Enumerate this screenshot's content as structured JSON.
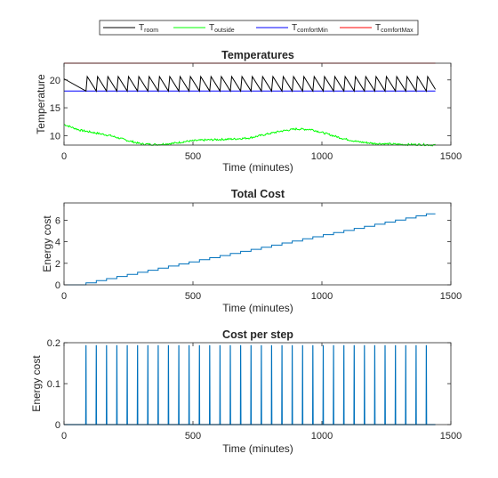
{
  "legend": {
    "entries": [
      {
        "main": "T",
        "sub": "room",
        "color": "#000000"
      },
      {
        "main": "T",
        "sub": "outside",
        "color": "#00ff00"
      },
      {
        "main": "T",
        "sub": "comfortMin",
        "color": "#0000ff"
      },
      {
        "main": "T",
        "sub": "comfortMax",
        "color": "#ff0000"
      }
    ],
    "placement": "top-center"
  },
  "chart_data": [
    {
      "type": "line",
      "title": "Temperatures",
      "xlabel": "Time (minutes)",
      "ylabel": "Temperature",
      "xlim": [
        0,
        1500
      ],
      "ylim": [
        8.3,
        23
      ],
      "xticks": [
        0,
        500,
        1000,
        1500
      ],
      "yticks": [
        10,
        15,
        20
      ],
      "comfort_min": 18,
      "comfort_max": 23,
      "room": {
        "initial": 20.2,
        "low": 18,
        "high": 20.6,
        "first_heat": 85,
        "period": 40,
        "heat_duration": 5,
        "end": 1440
      },
      "outside": {
        "x": [
          0,
          60,
          120,
          180,
          240,
          300,
          360,
          420,
          480,
          540,
          600,
          660,
          720,
          780,
          840,
          900,
          960,
          1020,
          1080,
          1140,
          1200,
          1260,
          1320,
          1380,
          1440
        ],
        "y": [
          12,
          11,
          10.5,
          10,
          9.2,
          8.5,
          8.4,
          8.6,
          9.0,
          9.2,
          9.3,
          9.4,
          9.6,
          10.2,
          10.8,
          11.2,
          11.1,
          10.3,
          9.5,
          8.9,
          8.6,
          8.5,
          8.4,
          8.4,
          8.3
        ]
      },
      "grid": false
    },
    {
      "type": "line",
      "title": "Total Cost",
      "xlabel": "Time (minutes)",
      "ylabel": "Energy cost",
      "xlim": [
        0,
        1500
      ],
      "ylim": [
        0,
        7.6
      ],
      "xticks": [
        0,
        500,
        1000,
        1500
      ],
      "yticks": [
        0,
        2,
        4,
        6
      ],
      "step_cost": 0.194,
      "first_step": 85,
      "period": 40,
      "end": 1440,
      "color": "#0072bd",
      "grid": false
    },
    {
      "type": "line",
      "title": "Cost per step",
      "xlabel": "Time (minutes)",
      "ylabel": "Energy cost",
      "xlim": [
        0,
        1500
      ],
      "ylim": [
        0,
        0.2
      ],
      "xticks": [
        0,
        500,
        1000,
        1500
      ],
      "yticks": [
        0,
        0.1,
        0.2
      ],
      "spike_value": 0.194,
      "first_spike": 85,
      "period": 40,
      "end": 1440,
      "color": "#0072bd",
      "grid": false
    }
  ]
}
